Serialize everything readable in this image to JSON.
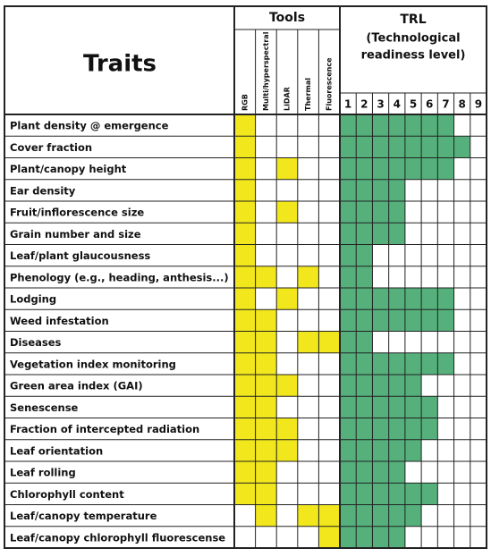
{
  "header": {
    "traits": "Traits",
    "tools": "Tools",
    "trl_title": "TRL",
    "trl_subtitle": [
      "(Technological",
      "readiness level)"
    ]
  },
  "tools": [
    "RGB",
    "Multi/hyperspectral",
    "LiDAR",
    "Thermal",
    "Fluorescence"
  ],
  "trl_levels": [
    1,
    2,
    3,
    4,
    5,
    6,
    7,
    8,
    9
  ],
  "colors": {
    "tools": "#f2e61c",
    "trl": "#55b07c"
  },
  "rows": [
    {
      "trait": "Plant density @ emergence",
      "tools": [
        true,
        false,
        false,
        false,
        false
      ],
      "trl": 7
    },
    {
      "trait": "Cover fraction",
      "tools": [
        true,
        false,
        false,
        false,
        false
      ],
      "trl": 8
    },
    {
      "trait": "Plant/canopy height",
      "tools": [
        true,
        false,
        true,
        false,
        false
      ],
      "trl": 7
    },
    {
      "trait": "Ear density",
      "tools": [
        true,
        false,
        false,
        false,
        false
      ],
      "trl": 4
    },
    {
      "trait": "Fruit/inflorescence size",
      "tools": [
        true,
        false,
        true,
        false,
        false
      ],
      "trl": 4
    },
    {
      "trait": "Grain number and size",
      "tools": [
        true,
        false,
        false,
        false,
        false
      ],
      "trl": 4
    },
    {
      "trait": "Leaf/plant glaucousness",
      "tools": [
        true,
        false,
        false,
        false,
        false
      ],
      "trl": 2
    },
    {
      "trait": "Phenology (e.g., heading, anthesis...)",
      "tools": [
        true,
        true,
        false,
        true,
        false
      ],
      "trl": 2
    },
    {
      "trait": "Lodging",
      "tools": [
        true,
        false,
        true,
        false,
        false
      ],
      "trl": 7
    },
    {
      "trait": "Weed infestation",
      "tools": [
        true,
        true,
        false,
        false,
        false
      ],
      "trl": 7
    },
    {
      "trait": "Diseases",
      "tools": [
        true,
        true,
        false,
        true,
        true
      ],
      "trl": 2
    },
    {
      "trait": "Vegetation index monitoring",
      "tools": [
        true,
        true,
        false,
        false,
        false
      ],
      "trl": 7
    },
    {
      "trait": "Green area index (GAI)",
      "tools": [
        true,
        true,
        true,
        false,
        false
      ],
      "trl": 5
    },
    {
      "trait": "Senescense",
      "tools": [
        true,
        true,
        false,
        false,
        false
      ],
      "trl": 6
    },
    {
      "trait": "Fraction of intercepted radiation",
      "tools": [
        true,
        true,
        true,
        false,
        false
      ],
      "trl": 6
    },
    {
      "trait": "Leaf orientation",
      "tools": [
        true,
        true,
        true,
        false,
        false
      ],
      "trl": 5
    },
    {
      "trait": "Leaf rolling",
      "tools": [
        true,
        true,
        false,
        false,
        false
      ],
      "trl": 4
    },
    {
      "trait": "Chlorophyll content",
      "tools": [
        true,
        true,
        false,
        false,
        false
      ],
      "trl": 6
    },
    {
      "trait": "Leaf/canopy temperature",
      "tools": [
        false,
        true,
        false,
        true,
        true
      ],
      "trl": 5
    },
    {
      "trait": "Leaf/canopy chlorophyll fluorescense",
      "tools": [
        false,
        false,
        false,
        false,
        true
      ],
      "trl": 4
    }
  ]
}
